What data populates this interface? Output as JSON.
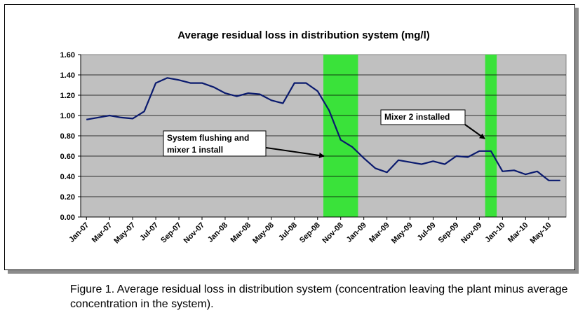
{
  "chart_data": {
    "type": "line",
    "title": "Average residual loss in distribution system (mg/l)",
    "xlabel": "",
    "ylabel": "",
    "ylim": [
      0,
      1.6
    ],
    "yticks": [
      "0.00",
      "0.20",
      "0.40",
      "0.60",
      "0.80",
      "1.00",
      "1.20",
      "1.40",
      "1.60"
    ],
    "xtick_labels": [
      "Jan-07",
      "Mar-07",
      "May-07",
      "Jul-07",
      "Sep-07",
      "Nov-07",
      "Jan-08",
      "Mar-08",
      "May-08",
      "Jul-08",
      "Sep-08",
      "Nov-08",
      "Jan-09",
      "Mar-09",
      "May-09",
      "Jul-09",
      "Sep-09",
      "Nov-09",
      "Jan-10",
      "Mar-10",
      "May-10"
    ],
    "grid": "horizontal",
    "legend": "none",
    "line_color": "#0a1a6e",
    "plot_background": "#c0c0c0",
    "highlight_color": "#3ae23a",
    "series": [
      {
        "x": [
          "Jan-07",
          "Feb-07",
          "Mar-07",
          "Apr-07",
          "May-07",
          "Jun-07",
          "Jul-07",
          "Aug-07",
          "Sep-07",
          "Oct-07",
          "Nov-07",
          "Dec-07",
          "Jan-08",
          "Feb-08",
          "Mar-08",
          "Apr-08",
          "May-08",
          "Jun-08",
          "Jul-08",
          "Aug-08",
          "Sep-08",
          "Oct-08",
          "Nov-08",
          "Dec-08",
          "Jan-09",
          "Feb-09",
          "Mar-09",
          "Apr-09",
          "May-09",
          "Jun-09",
          "Jul-09",
          "Aug-09",
          "Sep-09",
          "Oct-09",
          "Nov-09",
          "Dec-09",
          "Jan-10",
          "Feb-10",
          "Mar-10",
          "Apr-10",
          "May-10",
          "Jun-10"
        ],
        "values": [
          0.96,
          0.98,
          1.0,
          0.98,
          0.97,
          1.04,
          1.32,
          1.37,
          1.35,
          1.32,
          1.32,
          1.28,
          1.22,
          1.19,
          1.22,
          1.21,
          1.15,
          1.12,
          1.32,
          1.32,
          1.24,
          1.05,
          0.76,
          0.69,
          0.58,
          0.48,
          0.44,
          0.56,
          0.54,
          0.52,
          0.55,
          0.52,
          0.6,
          0.59,
          0.65,
          0.65,
          0.45,
          0.46,
          0.42,
          0.45,
          0.36,
          0.36
        ]
      }
    ],
    "highlight_bands": [
      {
        "start": "Oct-08",
        "end": "Dec-08"
      },
      {
        "start": "Dec-09",
        "end": "Dec-09"
      }
    ],
    "annotations": [
      {
        "lines": [
          "System flushing and",
          "mixer 1 install"
        ],
        "points_to": "Nov-08"
      },
      {
        "lines": [
          "Mixer 2 installed"
        ],
        "points_to": "Dec-09"
      }
    ]
  },
  "caption": "Figure 1.  Average residual loss in distribution system (concentration leaving the plant minus average concentration in the system)."
}
